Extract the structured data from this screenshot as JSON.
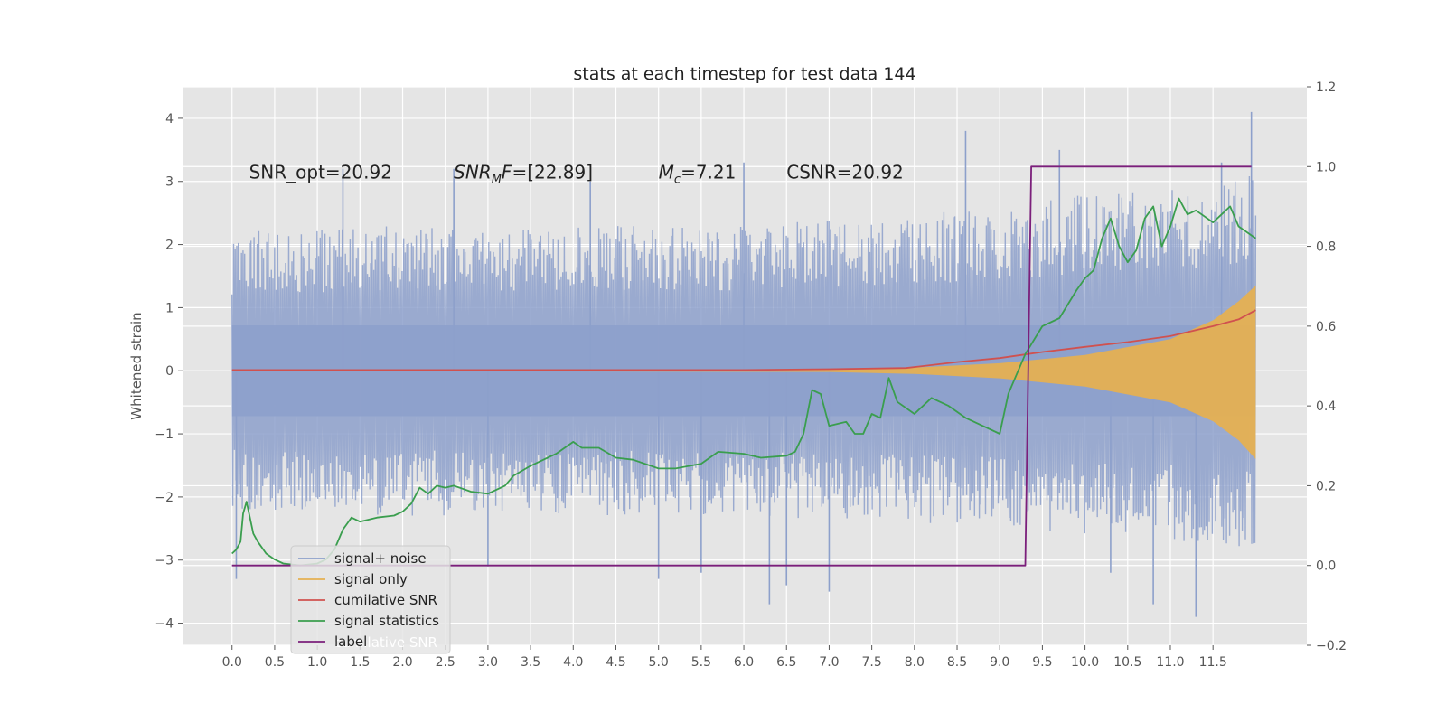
{
  "chart_data": {
    "type": "line",
    "title": "stats at each timestep for test data 144",
    "ylabel": "Whitened strain",
    "xlabel": "",
    "xlim": [
      -0.58,
      12.6
    ],
    "ylim": [
      -4.35,
      4.5
    ],
    "y2lim": [
      -0.2,
      1.2
    ],
    "x_ticks": [
      0.0,
      0.5,
      1.0,
      1.5,
      2.0,
      2.5,
      3.0,
      3.5,
      4.0,
      4.5,
      5.0,
      5.5,
      6.0,
      6.5,
      7.0,
      7.5,
      8.0,
      8.5,
      9.0,
      9.5,
      10.0,
      10.5,
      11.0,
      11.5
    ],
    "x_tick_labels": [
      "0.0",
      "0.5",
      "1.0",
      "1.5",
      "2.0",
      "2.5",
      "3.0",
      "3.5",
      "4.0",
      "4.5",
      "5.0",
      "5.5",
      "6.0",
      "6.5",
      "7.0",
      "7.5",
      "8.0",
      "8.5",
      "9.0",
      "9.5",
      "10.0",
      "10.5",
      "11.0",
      "11.5"
    ],
    "y_ticks": [
      -4,
      -3,
      -2,
      -1,
      0,
      1,
      2,
      3,
      4
    ],
    "y_tick_labels": [
      "−4",
      "−3",
      "−2",
      "−1",
      "0",
      "1",
      "2",
      "3",
      "4"
    ],
    "y2_ticks": [
      -0.2,
      0.0,
      0.2,
      0.4,
      0.6,
      0.8,
      1.0,
      1.2
    ],
    "y2_tick_labels": [
      "−0.2",
      "0.0",
      "0.2",
      "0.4",
      "0.6",
      "0.8",
      "1.0",
      "1.2"
    ],
    "grid": true,
    "legend_position": "bottom-left",
    "annotations": [
      {
        "text": "SNR_opt=20.92",
        "x": 0.2
      },
      {
        "text": "SNR",
        "sub": "M",
        "tail": "F=[22.89]",
        "italic": true,
        "x": 2.6
      },
      {
        "text": "M",
        "sub": "c",
        "tail": "=7.21",
        "italic": true,
        "x": 5.0
      },
      {
        "text": "CSNR=20.92",
        "x": 6.5
      }
    ],
    "annotation_y": 3.15,
    "series": [
      {
        "name": "signal+ noise",
        "color": "#8da0cb",
        "axis": "left",
        "x_range": [
          0.0,
          12.0
        ],
        "envelope_upper": [
          [
            0.0,
            2.2
          ],
          [
            2.0,
            2.3
          ],
          [
            4.0,
            2.3
          ],
          [
            6.0,
            2.3
          ],
          [
            8.0,
            2.5
          ],
          [
            9.0,
            2.6
          ],
          [
            10.0,
            2.8
          ],
          [
            11.0,
            2.9
          ],
          [
            12.0,
            3.1
          ]
        ],
        "envelope_lower": [
          [
            0.0,
            -2.2
          ],
          [
            2.0,
            -2.3
          ],
          [
            4.0,
            -2.3
          ],
          [
            6.0,
            -2.3
          ],
          [
            8.0,
            -2.4
          ],
          [
            9.0,
            -2.5
          ],
          [
            10.0,
            -2.6
          ],
          [
            11.0,
            -2.7
          ],
          [
            12.0,
            -2.9
          ]
        ],
        "spikes": [
          [
            0.05,
            -3.3
          ],
          [
            1.3,
            3.2
          ],
          [
            2.6,
            3.2
          ],
          [
            3.0,
            -3.1
          ],
          [
            4.2,
            3.0
          ],
          [
            5.0,
            -3.3
          ],
          [
            5.5,
            -3.2
          ],
          [
            6.0,
            3.3
          ],
          [
            6.3,
            -3.7
          ],
          [
            6.5,
            -3.4
          ],
          [
            7.0,
            -3.5
          ],
          [
            8.6,
            3.8
          ],
          [
            9.7,
            3.5
          ],
          [
            10.3,
            -3.2
          ],
          [
            10.8,
            -3.7
          ],
          [
            11.3,
            -3.9
          ],
          [
            11.6,
            3.3
          ],
          [
            11.95,
            4.1
          ]
        ]
      },
      {
        "name": "signal only",
        "color": "#e5b052",
        "axis": "left",
        "envelope_upper": [
          [
            0.0,
            0.0
          ],
          [
            7.0,
            0.02
          ],
          [
            8.0,
            0.05
          ],
          [
            9.0,
            0.12
          ],
          [
            10.0,
            0.25
          ],
          [
            11.0,
            0.5
          ],
          [
            11.5,
            0.8
          ],
          [
            11.8,
            1.1
          ],
          [
            12.0,
            1.35
          ]
        ],
        "envelope_lower": [
          [
            0.0,
            0.0
          ],
          [
            7.0,
            -0.02
          ],
          [
            8.0,
            -0.05
          ],
          [
            9.0,
            -0.12
          ],
          [
            10.0,
            -0.25
          ],
          [
            11.0,
            -0.5
          ],
          [
            11.5,
            -0.8
          ],
          [
            11.8,
            -1.1
          ],
          [
            12.0,
            -1.4
          ]
        ]
      },
      {
        "name": "cumilative SNR",
        "color": "#d0514f",
        "axis": "right",
        "points": [
          [
            0.0,
            0.49
          ],
          [
            6.0,
            0.49
          ],
          [
            7.0,
            0.492
          ],
          [
            7.9,
            0.495
          ],
          [
            8.5,
            0.51
          ],
          [
            9.0,
            0.52
          ],
          [
            9.5,
            0.535
          ],
          [
            10.0,
            0.548
          ],
          [
            10.5,
            0.56
          ],
          [
            11.0,
            0.575
          ],
          [
            11.5,
            0.6
          ],
          [
            11.8,
            0.617
          ],
          [
            12.0,
            0.64
          ]
        ]
      },
      {
        "name": "signal statistics",
        "color": "#3a9e4e",
        "axis": "right",
        "points": [
          [
            0.0,
            0.03
          ],
          [
            0.05,
            0.04
          ],
          [
            0.1,
            0.06
          ],
          [
            0.13,
            0.13
          ],
          [
            0.17,
            0.16
          ],
          [
            0.2,
            0.13
          ],
          [
            0.25,
            0.08
          ],
          [
            0.3,
            0.06
          ],
          [
            0.4,
            0.03
          ],
          [
            0.5,
            0.015
          ],
          [
            0.6,
            0.005
          ],
          [
            0.8,
            0.0
          ],
          [
            1.0,
            0.005
          ],
          [
            1.1,
            0.015
          ],
          [
            1.2,
            0.04
          ],
          [
            1.3,
            0.09
          ],
          [
            1.4,
            0.12
          ],
          [
            1.5,
            0.11
          ],
          [
            1.7,
            0.12
          ],
          [
            1.9,
            0.125
          ],
          [
            2.0,
            0.135
          ],
          [
            2.1,
            0.155
          ],
          [
            2.2,
            0.195
          ],
          [
            2.3,
            0.18
          ],
          [
            2.4,
            0.2
          ],
          [
            2.5,
            0.195
          ],
          [
            2.6,
            0.2
          ],
          [
            2.8,
            0.185
          ],
          [
            3.0,
            0.18
          ],
          [
            3.2,
            0.2
          ],
          [
            3.3,
            0.225
          ],
          [
            3.5,
            0.25
          ],
          [
            3.7,
            0.27
          ],
          [
            3.8,
            0.28
          ],
          [
            4.0,
            0.31
          ],
          [
            4.1,
            0.295
          ],
          [
            4.3,
            0.295
          ],
          [
            4.5,
            0.27
          ],
          [
            4.7,
            0.265
          ],
          [
            5.0,
            0.243
          ],
          [
            5.2,
            0.243
          ],
          [
            5.5,
            0.255
          ],
          [
            5.7,
            0.285
          ],
          [
            6.0,
            0.28
          ],
          [
            6.2,
            0.27
          ],
          [
            6.5,
            0.275
          ],
          [
            6.6,
            0.285
          ],
          [
            6.7,
            0.33
          ],
          [
            6.8,
            0.44
          ],
          [
            6.9,
            0.43
          ],
          [
            7.0,
            0.35
          ],
          [
            7.2,
            0.36
          ],
          [
            7.3,
            0.33
          ],
          [
            7.4,
            0.33
          ],
          [
            7.5,
            0.38
          ],
          [
            7.6,
            0.37
          ],
          [
            7.7,
            0.47
          ],
          [
            7.8,
            0.41
          ],
          [
            8.0,
            0.38
          ],
          [
            8.2,
            0.42
          ],
          [
            8.4,
            0.4
          ],
          [
            8.6,
            0.37
          ],
          [
            8.8,
            0.35
          ],
          [
            9.0,
            0.33
          ],
          [
            9.1,
            0.43
          ],
          [
            9.2,
            0.48
          ],
          [
            9.3,
            0.53
          ],
          [
            9.5,
            0.6
          ],
          [
            9.7,
            0.62
          ],
          [
            9.9,
            0.69
          ],
          [
            10.0,
            0.72
          ],
          [
            10.1,
            0.74
          ],
          [
            10.2,
            0.82
          ],
          [
            10.3,
            0.87
          ],
          [
            10.4,
            0.8
          ],
          [
            10.5,
            0.76
          ],
          [
            10.6,
            0.79
          ],
          [
            10.7,
            0.87
          ],
          [
            10.8,
            0.9
          ],
          [
            10.9,
            0.8
          ],
          [
            11.0,
            0.85
          ],
          [
            11.1,
            0.92
          ],
          [
            11.2,
            0.88
          ],
          [
            11.3,
            0.89
          ],
          [
            11.5,
            0.86
          ],
          [
            11.6,
            0.88
          ],
          [
            11.7,
            0.9
          ],
          [
            11.8,
            0.85
          ],
          [
            12.0,
            0.82
          ]
        ]
      },
      {
        "name": "label",
        "color": "#7b1f7b",
        "axis": "right",
        "points": [
          [
            0.0,
            0.0
          ],
          [
            9.3,
            0.0
          ],
          [
            9.37,
            1.0
          ],
          [
            11.95,
            1.0
          ]
        ]
      }
    ],
    "legend_partially_hidden_text": "cumilative SNR"
  }
}
